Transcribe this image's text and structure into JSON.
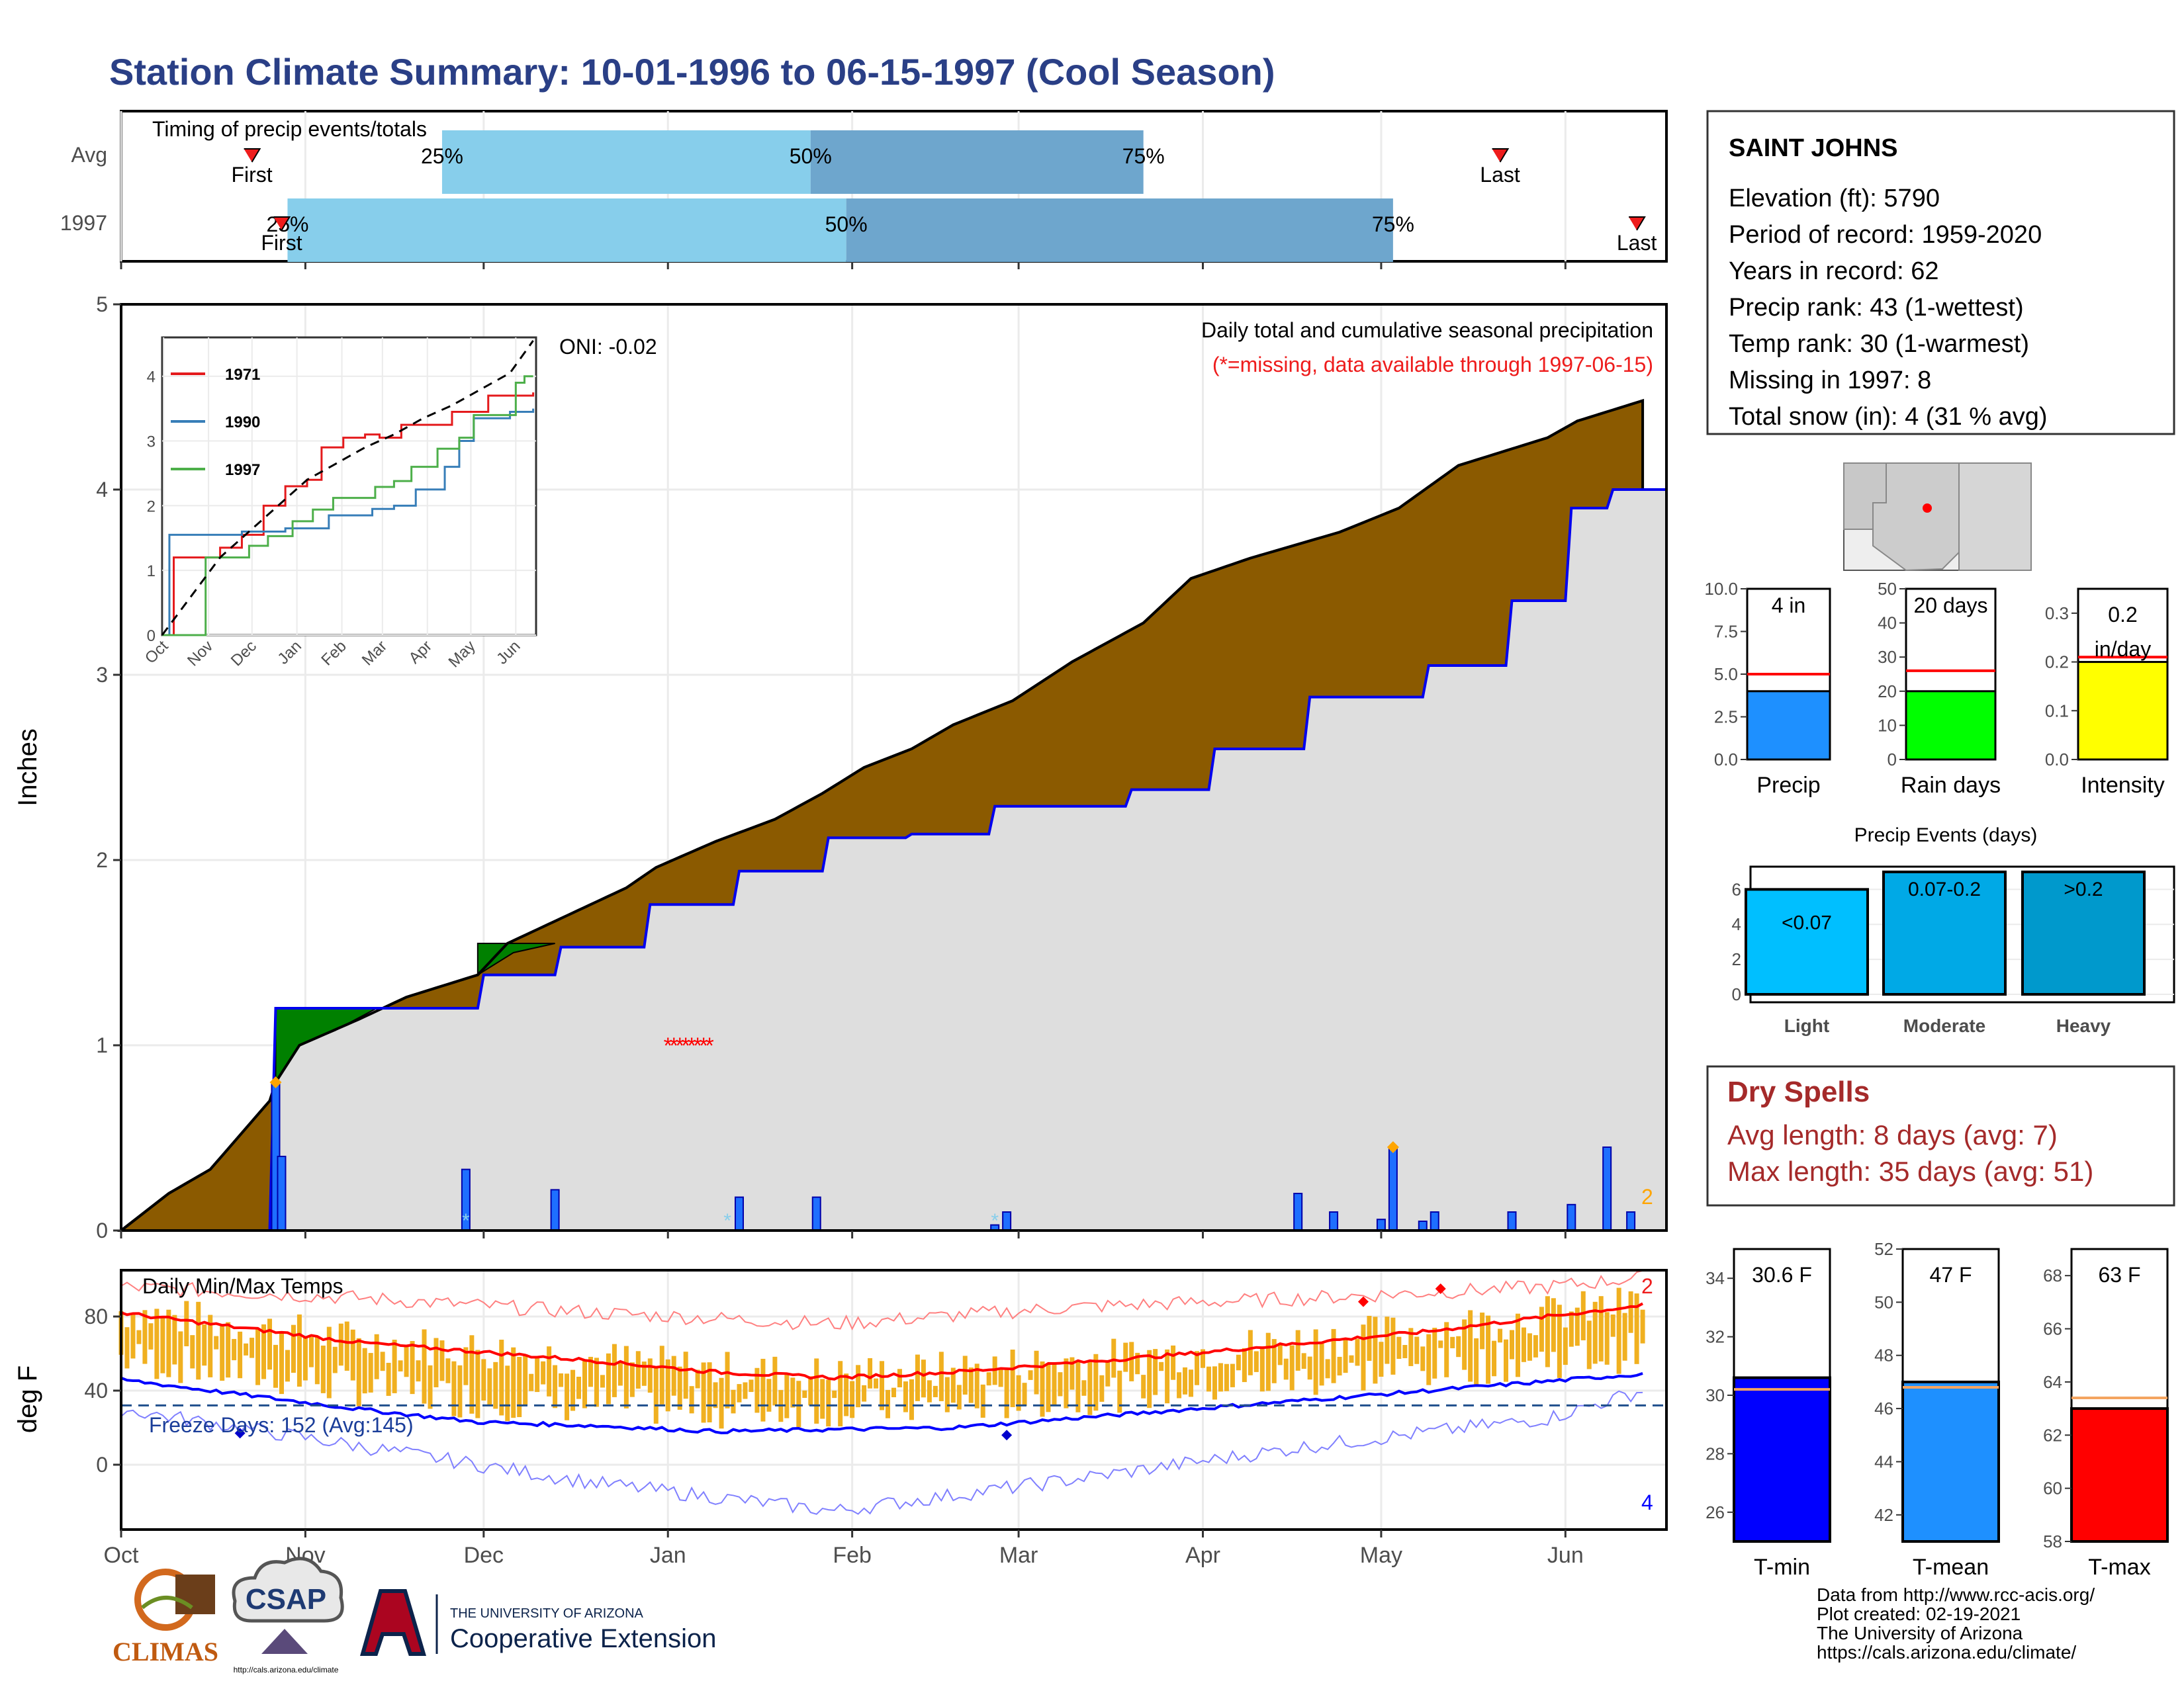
{
  "header": {
    "title": "Station Climate Summary: 10-01-1996 to 06-15-1997 (Cool Season)"
  },
  "timing": {
    "label": "Timing of precip events/totals",
    "rows": [
      {
        "name": "Avg",
        "first_label": "First",
        "last_label": "Last",
        "p25": "25%",
        "p50": "50%",
        "p75": "75%",
        "first_day": 22,
        "last_day": 232,
        "p25_day": 54,
        "p50_day": 116,
        "p75_day": 172
      },
      {
        "name": "1997",
        "first_label": "First",
        "last_label": "Last",
        "p25": "25%",
        "p50": "50%",
        "p75": "75%",
        "first_day": 27,
        "last_day": 255,
        "p25_day": 28,
        "p50_day": 122,
        "p75_day": 214
      }
    ]
  },
  "station": {
    "name": "SAINT JOHNS",
    "lines": [
      "Elevation (ft): 5790",
      "Period of record: 1959-2020",
      "Years in record: 62",
      "Precip rank: 43 (1-wettest)",
      "Temp rank: 30 (1-warmest)",
      "Missing in 1997: 8",
      "Total snow (in): 4 (31 % avg)"
    ]
  },
  "main_chart": {
    "ylabel": "Inches",
    "note1": "Daily total and cumulative seasonal precipitation",
    "note2": "(*=missing, data available through 1997-06-15)",
    "oni": "ONI: -0.02",
    "corner_count": "2",
    "yticks": [
      "0",
      "1",
      "2",
      "3",
      "4",
      "5"
    ],
    "xticks": [
      "Oct",
      "Nov",
      "Dec",
      "Jan",
      "Feb",
      "Mar",
      "Apr",
      "May",
      "Jun"
    ]
  },
  "inset": {
    "legend": [
      "1971",
      "1990",
      "1997"
    ],
    "yticks": [
      "0",
      "1",
      "2",
      "3",
      "4"
    ],
    "xticks": [
      "Oct",
      "Nov",
      "Dec",
      "Jan",
      "Feb",
      "Mar",
      "Apr",
      "May",
      "Jun"
    ]
  },
  "temp_chart": {
    "ylabel": "deg F",
    "label": "Daily Min/Max Temps",
    "freeze": "Freeze Days: 152 (Avg:145)",
    "top_count": "2",
    "bottom_count": "4",
    "yticks": [
      "0",
      "40",
      "80"
    ]
  },
  "gauges": [
    {
      "label": "Precip",
      "value_text": "4 in",
      "yticks": [
        "0.0",
        "2.5",
        "5.0",
        "7.5",
        "10.0"
      ],
      "value": 4,
      "avg": 5,
      "max": 10,
      "color": "#1e90ff"
    },
    {
      "label": "Rain days",
      "value_text": "20 days",
      "yticks": [
        "0",
        "10",
        "20",
        "30",
        "40",
        "50"
      ],
      "value": 20,
      "avg": 26,
      "max": 50,
      "color": "#00ff00"
    },
    {
      "label": "Intensity",
      "value_text": "0.2 in/day",
      "value_line1": "0.2",
      "value_line2": "in/day",
      "yticks": [
        "0.0",
        "0.1",
        "0.2",
        "0.3"
      ],
      "value": 0.2,
      "avg": 0.21,
      "max": 0.35,
      "color": "#ffff00"
    }
  ],
  "events": {
    "title": "Precip Events (days)",
    "yticks": [
      "0",
      "2",
      "4",
      "6"
    ],
    "bars": [
      {
        "label": "Light",
        "value_text": "<0.07",
        "value": 6,
        "color": "#00bfff"
      },
      {
        "label": "Moderate",
        "value_text": "0.07-0.2",
        "value": 7,
        "color": "#00a9e6"
      },
      {
        "label": "Heavy",
        "value_text": ">0.2",
        "value": 7,
        "color": "#0099cc"
      }
    ]
  },
  "dry_spells": {
    "title": "Dry Spells",
    "line1": "Avg length: 8 days (avg: 7)",
    "line2": "Max length: 35 days (avg: 51)"
  },
  "temp_gauges": [
    {
      "label": "T-min",
      "value_text": "30.6 F",
      "yticks": [
        "26",
        "28",
        "30",
        "32",
        "34"
      ],
      "min": 25,
      "max": 35,
      "value": 30.6,
      "avg": 30.2,
      "color": "#0000ff"
    },
    {
      "label": "T-mean",
      "value_text": "47 F",
      "yticks": [
        "42",
        "44",
        "46",
        "48",
        "50",
        "52"
      ],
      "min": 41,
      "max": 52,
      "value": 47,
      "avg": 46.8,
      "color": "#1e90ff"
    },
    {
      "label": "T-max",
      "value_text": "63 F",
      "yticks": [
        "58",
        "60",
        "62",
        "64",
        "66",
        "68"
      ],
      "min": 58,
      "max": 69,
      "value": 63,
      "avg": 63.4,
      "color": "#ff0000"
    }
  ],
  "footer": {
    "lines": [
      "Data from http://www.rcc-acis.org/",
      "Plot created: 02-19-2021",
      "The University of Arizona",
      "https://cals.arizona.edu/climate/"
    ],
    "logo1": "CLIMAS",
    "logo2": "CSAP",
    "logo2_url": "http://cals.arizona.edu/climate",
    "logo3_small": "THE UNIVERSITY OF ARIZONA",
    "logo3_big": "Cooperative Extension"
  },
  "chart_data": [
    {
      "type": "area",
      "title": "Daily total and cumulative seasonal precipitation",
      "ylabel": "Inches",
      "ylim": [
        0,
        5
      ],
      "x_unit": "day of season from 10-01-1996",
      "cumulative_1997": {
        "x": [
          0,
          8,
          15,
          25,
          26,
          30,
          40,
          48,
          60,
          65,
          75,
          85,
          90,
          100,
          110,
          118,
          125,
          133,
          140,
          150,
          160,
          172,
          180,
          190,
          205,
          215,
          225,
          240,
          245,
          256
        ],
        "y": [
          0.0,
          0.2,
          0.33,
          0.7,
          0.8,
          1.0,
          1.14,
          1.26,
          1.38,
          1.55,
          1.7,
          1.85,
          1.96,
          2.1,
          2.22,
          2.36,
          2.5,
          2.6,
          2.73,
          2.86,
          3.07,
          3.28,
          3.52,
          3.63,
          3.77,
          3.9,
          4.13,
          4.28,
          4.37,
          4.48
        ]
      },
      "cumulative_avg": {
        "x": [
          0,
          25,
          26,
          60,
          61,
          73,
          74,
          88,
          89,
          103,
          104,
          118,
          119,
          132,
          133,
          146,
          147,
          169,
          170,
          183,
          184,
          199,
          200,
          219,
          220,
          233,
          234,
          243,
          244,
          250,
          251,
          256
        ],
        "y": [
          0.0,
          0.0,
          1.2,
          1.2,
          1.38,
          1.38,
          1.53,
          1.53,
          1.76,
          1.76,
          1.94,
          1.94,
          2.12,
          2.12,
          2.14,
          2.14,
          2.29,
          2.29,
          2.38,
          2.38,
          2.6,
          2.6,
          2.88,
          2.88,
          3.05,
          3.05,
          3.4,
          3.4,
          3.9,
          3.9,
          4.0,
          4.0
        ]
      },
      "daily_1997": {
        "x": [
          26,
          27,
          58,
          73,
          104,
          117,
          147,
          149,
          198,
          204,
          212,
          214,
          219,
          221,
          234,
          244,
          250,
          254
        ],
        "y": [
          0.8,
          0.4,
          0.33,
          0.22,
          0.18,
          0.18,
          0.03,
          0.1,
          0.2,
          0.1,
          0.06,
          0.45,
          0.05,
          0.1,
          0.1,
          0.14,
          0.45,
          0.1
        ]
      },
      "missing_days": [
        92,
        93,
        94,
        95,
        96,
        97,
        98,
        99
      ]
    },
    {
      "type": "line",
      "title": "",
      "series": [
        {
          "name": "1971",
          "x": [
            0,
            8,
            20,
            40,
            55,
            70,
            85,
            100,
            110,
            125,
            140,
            150,
            165,
            180,
            200,
            212,
            225,
            240,
            256
          ],
          "y": [
            0.0,
            1.2,
            1.2,
            1.35,
            1.55,
            2.0,
            2.3,
            2.4,
            2.9,
            3.05,
            3.1,
            3.05,
            3.25,
            3.25,
            3.45,
            3.45,
            3.7,
            3.7,
            3.75
          ]
        },
        {
          "name": "1990",
          "x": [
            0,
            5,
            15,
            30,
            55,
            65,
            85,
            100,
            115,
            130,
            145,
            160,
            175,
            195,
            205,
            215,
            225,
            240,
            256
          ],
          "y": [
            0.0,
            1.55,
            1.55,
            1.55,
            1.6,
            1.6,
            1.65,
            1.65,
            1.85,
            1.85,
            1.95,
            2.0,
            2.25,
            2.6,
            3.0,
            3.35,
            3.35,
            3.45,
            3.5
          ]
        },
        {
          "name": "1997",
          "x": [
            0,
            25,
            30,
            60,
            73,
            90,
            104,
            118,
            147,
            160,
            172,
            190,
            205,
            215,
            230,
            244,
            250,
            256
          ],
          "y": [
            0.0,
            0.0,
            1.2,
            1.38,
            1.53,
            1.76,
            1.94,
            2.12,
            2.29,
            2.38,
            2.6,
            2.88,
            3.05,
            3.4,
            3.4,
            3.9,
            4.0,
            4.0
          ]
        },
        {
          "name": "avg",
          "x": [
            0,
            20,
            40,
            60,
            80,
            100,
            120,
            140,
            160,
            180,
            200,
            220,
            240,
            256
          ],
          "y": [
            0.0,
            0.6,
            1.2,
            1.6,
            2.0,
            2.4,
            2.65,
            2.9,
            3.1,
            3.35,
            3.55,
            3.8,
            4.05,
            4.55
          ]
        }
      ],
      "ylim": [
        0,
        4.5
      ]
    },
    {
      "type": "area",
      "title": "Daily Min/Max Temps",
      "ylabel": "deg F",
      "ylim": [
        -35,
        105
      ],
      "freeze_line": 32,
      "avg_max": {
        "x": [
          0,
          20,
          40,
          60,
          80,
          100,
          120,
          140,
          160,
          180,
          200,
          220,
          240,
          256
        ],
        "y": [
          82,
          74,
          66,
          61,
          56,
          50,
          47,
          50,
          55,
          60,
          66,
          72,
          80,
          86
        ]
      },
      "avg_min": {
        "x": [
          0,
          20,
          40,
          60,
          80,
          100,
          120,
          140,
          160,
          180,
          200,
          220,
          240,
          256
        ],
        "y": [
          46,
          38,
          30,
          23,
          21,
          18,
          19,
          20,
          25,
          30,
          35,
          40,
          45,
          49
        ]
      },
      "record_max": {
        "x": [
          0,
          40,
          80,
          120,
          160,
          200,
          240,
          256
        ],
        "y": [
          96,
          90,
          82,
          76,
          85,
          90,
          96,
          101
        ]
      },
      "record_min": {
        "x": [
          0,
          40,
          80,
          120,
          160,
          200,
          240,
          256
        ],
        "y": [
          30,
          10,
          -10,
          -25,
          -8,
          10,
          25,
          40
        ]
      }
    }
  ]
}
